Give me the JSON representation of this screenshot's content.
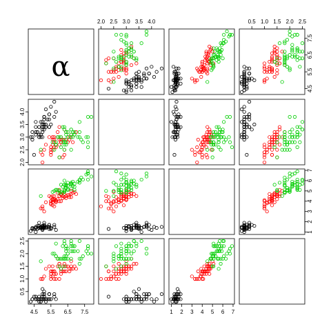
{
  "chart_data": {
    "type": "scatter",
    "kind": "scatterplot-matrix",
    "variables": [
      {
        "label": "α",
        "range": [
          4.3,
          7.9
        ],
        "ticks": [
          4.5,
          5.5,
          6.5,
          7.5
        ],
        "tick_labels": [
          "4.5",
          "5.5",
          "6.5",
          "7.5"
        ]
      },
      {
        "label": "",
        "range": [
          2.0,
          4.4
        ],
        "ticks": [
          2.0,
          2.5,
          3.0,
          3.5,
          4.0
        ],
        "tick_labels": [
          "2.0",
          "2.5",
          "3.0",
          "3.5",
          "4.0"
        ]
      },
      {
        "label": "",
        "range": [
          1.0,
          6.9
        ],
        "ticks": [
          1,
          2,
          3,
          4,
          5,
          6,
          7
        ],
        "tick_labels": [
          "1",
          "2",
          "3",
          "4",
          "5",
          "6",
          "7"
        ]
      },
      {
        "label": "",
        "range": [
          0.1,
          2.5
        ],
        "ticks": [
          0.5,
          1.0,
          1.5,
          2.0,
          2.5
        ],
        "tick_labels": [
          "0.5",
          "1.0",
          "1.5",
          "2.0",
          "2.5"
        ]
      }
    ],
    "groups": [
      {
        "color": "#000000",
        "points": [
          [
            5.1,
            3.5,
            1.4,
            0.2
          ],
          [
            4.9,
            3.0,
            1.4,
            0.2
          ],
          [
            4.7,
            3.2,
            1.3,
            0.2
          ],
          [
            4.6,
            3.1,
            1.5,
            0.2
          ],
          [
            5.0,
            3.6,
            1.4,
            0.2
          ],
          [
            5.4,
            3.9,
            1.7,
            0.4
          ],
          [
            4.6,
            3.4,
            1.4,
            0.3
          ],
          [
            5.0,
            3.4,
            1.5,
            0.2
          ],
          [
            4.4,
            2.9,
            1.4,
            0.2
          ],
          [
            4.9,
            3.1,
            1.5,
            0.1
          ],
          [
            5.4,
            3.7,
            1.5,
            0.2
          ],
          [
            4.8,
            3.4,
            1.6,
            0.2
          ],
          [
            4.8,
            3.0,
            1.4,
            0.1
          ],
          [
            4.3,
            3.0,
            1.1,
            0.1
          ],
          [
            5.8,
            4.0,
            1.2,
            0.2
          ],
          [
            5.7,
            4.4,
            1.5,
            0.4
          ],
          [
            5.4,
            3.9,
            1.3,
            0.4
          ],
          [
            5.1,
            3.5,
            1.4,
            0.3
          ],
          [
            5.7,
            3.8,
            1.7,
            0.3
          ],
          [
            5.1,
            3.8,
            1.5,
            0.3
          ],
          [
            5.4,
            3.4,
            1.7,
            0.2
          ],
          [
            5.1,
            3.7,
            1.5,
            0.4
          ],
          [
            4.6,
            3.6,
            1.0,
            0.2
          ],
          [
            5.1,
            3.3,
            1.7,
            0.5
          ],
          [
            4.8,
            3.4,
            1.9,
            0.2
          ],
          [
            5.0,
            3.0,
            1.6,
            0.2
          ],
          [
            5.0,
            3.4,
            1.6,
            0.4
          ],
          [
            5.2,
            3.5,
            1.5,
            0.2
          ],
          [
            5.2,
            3.4,
            1.4,
            0.2
          ],
          [
            4.7,
            3.2,
            1.6,
            0.2
          ],
          [
            4.8,
            3.1,
            1.6,
            0.2
          ],
          [
            5.4,
            3.4,
            1.5,
            0.4
          ],
          [
            5.2,
            4.1,
            1.5,
            0.1
          ],
          [
            5.5,
            4.2,
            1.4,
            0.2
          ],
          [
            4.9,
            3.1,
            1.5,
            0.2
          ],
          [
            5.0,
            3.2,
            1.2,
            0.2
          ],
          [
            5.5,
            3.5,
            1.3,
            0.2
          ],
          [
            4.9,
            3.6,
            1.4,
            0.1
          ],
          [
            4.4,
            3.0,
            1.3,
            0.2
          ],
          [
            5.1,
            3.4,
            1.5,
            0.2
          ],
          [
            5.0,
            3.5,
            1.3,
            0.3
          ],
          [
            4.5,
            2.3,
            1.3,
            0.3
          ],
          [
            4.4,
            3.2,
            1.3,
            0.2
          ],
          [
            5.0,
            3.5,
            1.6,
            0.6
          ],
          [
            5.1,
            3.8,
            1.9,
            0.4
          ],
          [
            4.8,
            3.0,
            1.4,
            0.3
          ],
          [
            5.1,
            3.8,
            1.6,
            0.2
          ],
          [
            4.6,
            3.2,
            1.4,
            0.2
          ],
          [
            5.3,
            3.7,
            1.5,
            0.2
          ],
          [
            5.0,
            3.3,
            1.4,
            0.2
          ]
        ]
      },
      {
        "color": "#ff0000",
        "points": [
          [
            7.0,
            3.2,
            4.7,
            1.4
          ],
          [
            6.4,
            3.2,
            4.5,
            1.5
          ],
          [
            6.9,
            3.1,
            4.9,
            1.5
          ],
          [
            5.5,
            2.3,
            4.0,
            1.3
          ],
          [
            6.5,
            2.8,
            4.6,
            1.5
          ],
          [
            5.7,
            2.8,
            4.5,
            1.3
          ],
          [
            6.3,
            3.3,
            4.7,
            1.6
          ],
          [
            4.9,
            2.4,
            3.3,
            1.0
          ],
          [
            6.6,
            2.9,
            4.6,
            1.3
          ],
          [
            5.2,
            2.7,
            3.9,
            1.4
          ],
          [
            5.0,
            2.0,
            3.5,
            1.0
          ],
          [
            5.9,
            3.0,
            4.2,
            1.5
          ],
          [
            6.0,
            2.2,
            4.0,
            1.0
          ],
          [
            6.1,
            2.9,
            4.7,
            1.4
          ],
          [
            5.6,
            2.9,
            3.6,
            1.3
          ],
          [
            6.7,
            3.1,
            4.4,
            1.4
          ],
          [
            5.6,
            3.0,
            4.5,
            1.5
          ],
          [
            5.8,
            2.7,
            4.1,
            1.0
          ],
          [
            6.2,
            2.2,
            4.5,
            1.5
          ],
          [
            5.6,
            2.5,
            3.9,
            1.1
          ],
          [
            5.9,
            3.2,
            4.8,
            1.8
          ],
          [
            6.1,
            2.8,
            4.0,
            1.3
          ],
          [
            6.3,
            2.5,
            4.9,
            1.5
          ],
          [
            6.1,
            2.8,
            4.7,
            1.2
          ],
          [
            6.4,
            2.9,
            4.3,
            1.3
          ],
          [
            6.6,
            3.0,
            4.4,
            1.4
          ],
          [
            6.8,
            2.8,
            4.8,
            1.4
          ],
          [
            6.7,
            3.0,
            5.0,
            1.7
          ],
          [
            6.0,
            2.9,
            4.5,
            1.5
          ],
          [
            5.7,
            2.6,
            3.5,
            1.0
          ],
          [
            5.5,
            2.4,
            3.8,
            1.1
          ],
          [
            5.5,
            2.4,
            3.7,
            1.0
          ],
          [
            5.8,
            2.7,
            3.9,
            1.2
          ],
          [
            6.0,
            2.7,
            5.1,
            1.6
          ],
          [
            5.4,
            3.0,
            4.5,
            1.5
          ],
          [
            6.0,
            3.4,
            4.5,
            1.6
          ],
          [
            6.7,
            3.1,
            4.7,
            1.5
          ],
          [
            6.3,
            2.3,
            4.4,
            1.3
          ],
          [
            5.6,
            3.0,
            4.1,
            1.3
          ],
          [
            5.5,
            2.5,
            4.0,
            1.3
          ],
          [
            5.5,
            2.6,
            4.4,
            1.2
          ],
          [
            6.1,
            3.0,
            4.6,
            1.4
          ],
          [
            5.8,
            2.6,
            4.0,
            1.2
          ],
          [
            5.0,
            2.3,
            3.3,
            1.0
          ],
          [
            5.6,
            2.7,
            4.2,
            1.3
          ],
          [
            5.7,
            3.0,
            4.2,
            1.2
          ],
          [
            5.7,
            2.9,
            4.2,
            1.3
          ],
          [
            6.2,
            2.9,
            4.3,
            1.3
          ],
          [
            5.1,
            2.5,
            3.0,
            1.1
          ],
          [
            5.7,
            2.8,
            4.1,
            1.3
          ]
        ]
      },
      {
        "color": "#00cd00",
        "points": [
          [
            6.3,
            3.3,
            6.0,
            2.5
          ],
          [
            5.8,
            2.7,
            5.1,
            1.9
          ],
          [
            7.1,
            3.0,
            5.9,
            2.1
          ],
          [
            6.3,
            2.9,
            5.6,
            1.8
          ],
          [
            6.5,
            3.0,
            5.8,
            2.2
          ],
          [
            7.6,
            3.0,
            6.6,
            2.1
          ],
          [
            4.9,
            2.5,
            4.5,
            1.7
          ],
          [
            7.3,
            2.9,
            6.3,
            1.8
          ],
          [
            6.7,
            2.5,
            5.8,
            1.8
          ],
          [
            7.2,
            3.6,
            6.1,
            2.5
          ],
          [
            6.5,
            3.2,
            5.1,
            2.0
          ],
          [
            6.4,
            2.7,
            5.3,
            1.9
          ],
          [
            6.8,
            3.0,
            5.5,
            2.1
          ],
          [
            5.7,
            2.5,
            5.0,
            2.0
          ],
          [
            5.8,
            2.8,
            5.1,
            2.4
          ],
          [
            6.4,
            3.2,
            5.3,
            2.3
          ],
          [
            6.5,
            3.0,
            5.5,
            1.8
          ],
          [
            7.7,
            3.8,
            6.7,
            2.2
          ],
          [
            7.7,
            2.6,
            6.9,
            2.3
          ],
          [
            6.0,
            2.2,
            5.0,
            1.5
          ],
          [
            6.9,
            3.2,
            5.7,
            2.3
          ],
          [
            5.6,
            2.8,
            4.9,
            2.0
          ],
          [
            7.7,
            2.8,
            6.7,
            2.0
          ],
          [
            6.3,
            2.7,
            4.9,
            1.8
          ],
          [
            6.7,
            3.3,
            5.7,
            2.1
          ],
          [
            7.2,
            3.2,
            6.0,
            1.8
          ],
          [
            6.2,
            2.8,
            4.8,
            1.8
          ],
          [
            6.1,
            3.0,
            4.9,
            1.8
          ],
          [
            6.4,
            2.8,
            5.6,
            2.1
          ],
          [
            7.2,
            3.0,
            5.8,
            1.6
          ],
          [
            7.4,
            2.8,
            6.1,
            1.9
          ],
          [
            7.9,
            3.8,
            6.4,
            2.0
          ],
          [
            6.4,
            2.8,
            5.6,
            2.2
          ],
          [
            6.3,
            2.8,
            5.1,
            1.5
          ],
          [
            6.1,
            2.6,
            5.6,
            1.4
          ],
          [
            7.7,
            3.0,
            6.1,
            2.3
          ],
          [
            6.3,
            3.4,
            5.6,
            2.4
          ],
          [
            6.4,
            3.1,
            5.5,
            1.8
          ],
          [
            6.0,
            3.0,
            4.8,
            1.8
          ],
          [
            6.9,
            3.1,
            5.4,
            2.1
          ],
          [
            6.7,
            3.1,
            5.6,
            2.4
          ],
          [
            6.9,
            3.1,
            5.1,
            2.3
          ],
          [
            5.8,
            2.7,
            5.1,
            1.9
          ],
          [
            6.8,
            3.2,
            5.9,
            2.3
          ],
          [
            6.7,
            3.3,
            5.7,
            2.5
          ],
          [
            6.7,
            3.0,
            5.2,
            2.3
          ],
          [
            6.3,
            2.5,
            5.0,
            1.9
          ],
          [
            6.5,
            3.0,
            5.2,
            2.0
          ],
          [
            6.2,
            3.4,
            5.4,
            2.3
          ],
          [
            5.9,
            3.0,
            5.1,
            1.8
          ]
        ]
      }
    ]
  }
}
